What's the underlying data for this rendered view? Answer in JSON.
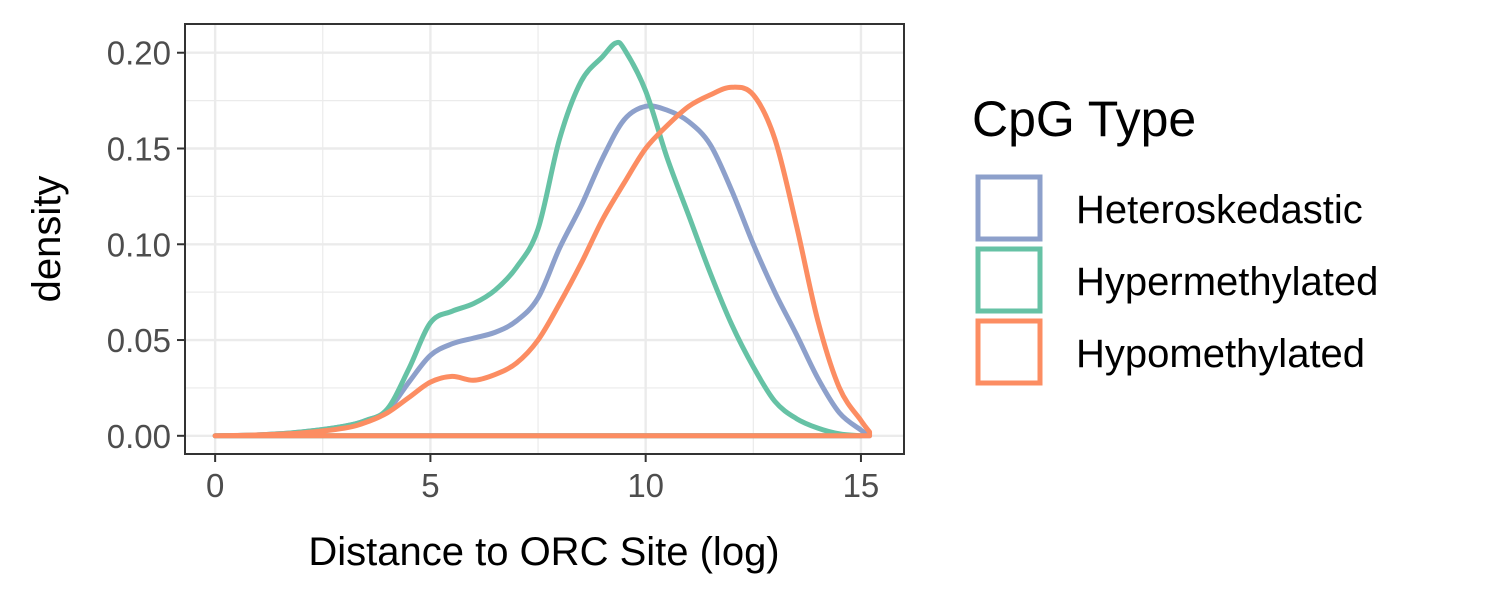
{
  "chart_data": {
    "type": "line",
    "subtype": "density",
    "xlabel": "Distance to ORC Site (log)",
    "ylabel": "density",
    "xlim": [
      -0.7,
      16.0
    ],
    "ylim": [
      -0.0095,
      0.215
    ],
    "x_ticks": [
      0,
      5,
      10,
      15
    ],
    "x_tick_labels": [
      "0",
      "5",
      "10",
      "15"
    ],
    "y_ticks": [
      0.0,
      0.05,
      0.1,
      0.15,
      0.2
    ],
    "y_tick_labels": [
      "0.00",
      "0.05",
      "0.10",
      "0.15",
      "0.20"
    ],
    "grid": true,
    "legend": {
      "title": "CpG Type",
      "position": "right"
    },
    "series": [
      {
        "name": "Heteroskedastic",
        "color": "#8DA0CB",
        "x": [
          0,
          1,
          2,
          3,
          3.5,
          4,
          4.5,
          5,
          5.5,
          6,
          6.5,
          7,
          7.5,
          8,
          8.5,
          9,
          9.5,
          10,
          10.5,
          11,
          11.5,
          12,
          12.5,
          13,
          13.5,
          14,
          14.5,
          15,
          15.2
        ],
        "y": [
          0,
          0.0005,
          0.002,
          0.005,
          0.008,
          0.013,
          0.028,
          0.042,
          0.048,
          0.051,
          0.054,
          0.06,
          0.072,
          0.098,
          0.12,
          0.145,
          0.165,
          0.172,
          0.17,
          0.164,
          0.152,
          0.128,
          0.1,
          0.075,
          0.053,
          0.03,
          0.012,
          0.003,
          0
        ]
      },
      {
        "name": "Hypermethylated",
        "color": "#66C2A5",
        "x": [
          0,
          1,
          2,
          3,
          3.5,
          4,
          4.5,
          5,
          5.5,
          6,
          6.5,
          7,
          7.5,
          8,
          8.5,
          9,
          9.3,
          9.5,
          10,
          10.5,
          11,
          11.5,
          12,
          12.5,
          13,
          13.5,
          14,
          14.5,
          15
        ],
        "y": [
          0,
          0.0005,
          0.002,
          0.005,
          0.008,
          0.014,
          0.035,
          0.059,
          0.065,
          0.069,
          0.076,
          0.088,
          0.108,
          0.155,
          0.185,
          0.198,
          0.205,
          0.202,
          0.18,
          0.145,
          0.115,
          0.085,
          0.058,
          0.036,
          0.018,
          0.009,
          0.004,
          0.001,
          0
        ]
      },
      {
        "name": "Hypomethylated",
        "color": "#FC8D62",
        "x": [
          0,
          1,
          2,
          3,
          3.5,
          4,
          4.5,
          5,
          5.5,
          6,
          6.5,
          7,
          7.5,
          8,
          8.5,
          9,
          9.5,
          10,
          10.5,
          11,
          11.5,
          12,
          12.5,
          13,
          13.5,
          14,
          14.5,
          15,
          15.2
        ],
        "y": [
          0,
          0.0005,
          0.0015,
          0.004,
          0.007,
          0.012,
          0.02,
          0.028,
          0.031,
          0.029,
          0.032,
          0.038,
          0.05,
          0.069,
          0.09,
          0.113,
          0.132,
          0.15,
          0.162,
          0.172,
          0.178,
          0.182,
          0.178,
          0.155,
          0.11,
          0.06,
          0.025,
          0.008,
          0.002
        ]
      }
    ]
  }
}
